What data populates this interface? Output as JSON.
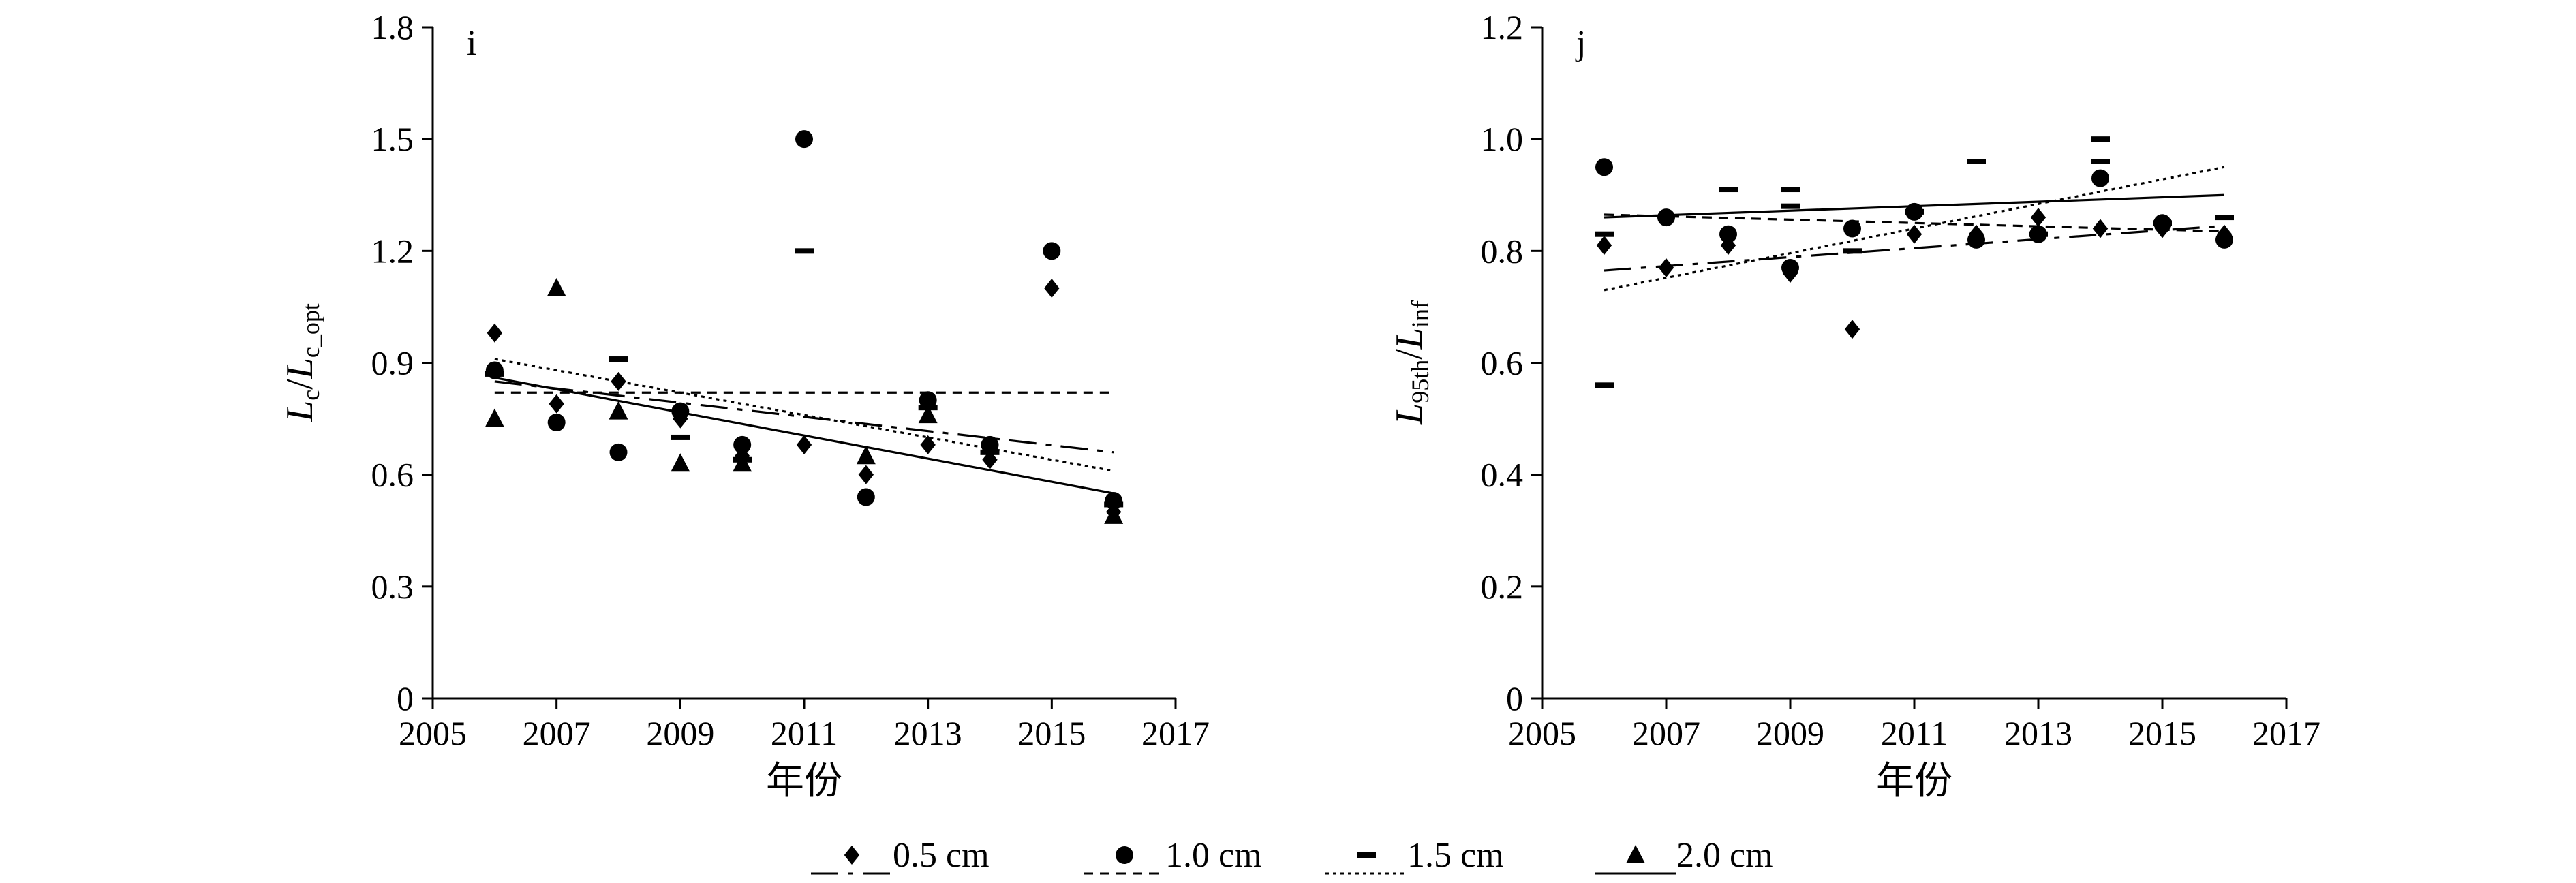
{
  "chart_data": [
    {
      "type": "scatter",
      "panel_label": "i",
      "xlabel": "年份",
      "ylabel": {
        "main": "L",
        "main_sub": "c",
        "slash": "/",
        "den": "L",
        "den_sub": "c_opt"
      },
      "xlim": [
        2005,
        2017
      ],
      "ylim": [
        0,
        1.8
      ],
      "xticks": [
        2005,
        2007,
        2009,
        2011,
        2013,
        2015,
        2017
      ],
      "yticks": [
        0,
        0.3,
        0.6,
        0.9,
        1.2,
        1.5,
        1.8
      ],
      "ytick_labels": [
        "0",
        "0.3",
        "0.6",
        "0.9",
        "1.2",
        "1.5",
        "1.8"
      ],
      "series": [
        {
          "name": "0.5 cm",
          "marker": "diamond",
          "line": "dash-dot",
          "x": [
            2006,
            2007,
            2008,
            2009,
            2010,
            2011,
            2012,
            2013,
            2014,
            2015,
            2016
          ],
          "y": [
            0.98,
            0.79,
            0.85,
            0.75,
            0.65,
            0.68,
            0.6,
            0.68,
            0.64,
            1.1,
            0.5
          ],
          "trend": [
            [
              2006,
              0.85
            ],
            [
              2016,
              0.66
            ]
          ]
        },
        {
          "name": "1.0 cm",
          "marker": "circle",
          "line": "short-dash",
          "x": [
            2006,
            2007,
            2008,
            2009,
            2010,
            2011,
            2012,
            2013,
            2014,
            2015,
            2016
          ],
          "y": [
            0.88,
            0.74,
            0.66,
            0.77,
            0.68,
            1.5,
            0.54,
            0.8,
            0.68,
            1.2,
            0.53
          ],
          "trend": [
            [
              2006,
              0.82
            ],
            [
              2016,
              0.82
            ]
          ]
        },
        {
          "name": "1.5 cm",
          "marker": "dash",
          "line": "dotted",
          "x": [
            2006,
            2008,
            2009,
            2010,
            2011,
            2013,
            2014,
            2016
          ],
          "y": [
            0.87,
            0.91,
            0.7,
            0.64,
            1.2,
            0.78,
            0.66,
            0.52
          ],
          "trend": [
            [
              2006,
              0.91
            ],
            [
              2016,
              0.61
            ]
          ]
        },
        {
          "name": "2.0 cm",
          "marker": "triangle",
          "line": "solid",
          "x": [
            2006,
            2007,
            2008,
            2009,
            2010,
            2012,
            2013,
            2016
          ],
          "y": [
            0.75,
            1.1,
            0.77,
            0.63,
            0.63,
            0.65,
            0.76,
            0.49
          ],
          "trend": [
            [
              2006,
              0.86
            ],
            [
              2016,
              0.55
            ]
          ]
        }
      ]
    },
    {
      "type": "scatter",
      "panel_label": "j",
      "xlabel": "年份",
      "ylabel": {
        "main": "L",
        "main_sub": "95th",
        "slash": "/",
        "den": "L",
        "den_sub": "inf"
      },
      "xlim": [
        2005,
        2017
      ],
      "ylim": [
        0,
        1.2
      ],
      "xticks": [
        2005,
        2007,
        2009,
        2011,
        2013,
        2015,
        2017
      ],
      "yticks": [
        0,
        0.2,
        0.4,
        0.6,
        0.8,
        1.0,
        1.2
      ],
      "ytick_labels": [
        "0",
        "0.2",
        "0.4",
        "0.6",
        "0.8",
        "1.0",
        "1.2"
      ],
      "series": [
        {
          "name": "0.5 cm",
          "marker": "diamond",
          "line": "dash-dot",
          "x": [
            2006,
            2007,
            2008,
            2009,
            2010,
            2011,
            2012,
            2013,
            2014,
            2015,
            2016
          ],
          "y": [
            0.81,
            0.77,
            0.81,
            0.76,
            0.66,
            0.83,
            0.83,
            0.86,
            0.84,
            0.84,
            0.83
          ],
          "trend": [
            [
              2006,
              0.765
            ],
            [
              2016,
              0.845
            ]
          ]
        },
        {
          "name": "1.0 cm",
          "marker": "circle",
          "line": "short-dash",
          "x": [
            2006,
            2007,
            2008,
            2009,
            2010,
            2011,
            2012,
            2013,
            2014,
            2015,
            2016
          ],
          "y": [
            0.95,
            0.86,
            0.83,
            0.77,
            0.84,
            0.87,
            0.82,
            0.83,
            0.93,
            0.85,
            0.82
          ],
          "trend": [
            [
              2006,
              0.865
            ],
            [
              2016,
              0.835
            ]
          ]
        },
        {
          "name": "1.5 cm",
          "marker": "dash",
          "line": "dotted",
          "x": [
            2006,
            2006,
            2008,
            2009,
            2009,
            2010,
            2011,
            2012,
            2013,
            2014,
            2014,
            2015,
            2016
          ],
          "y": [
            0.56,
            0.83,
            0.91,
            0.91,
            0.88,
            0.8,
            0.87,
            0.96,
            0.83,
            1.0,
            0.96,
            0.85,
            0.86
          ],
          "trend": [
            [
              2006,
              0.73
            ],
            [
              2016,
              0.95
            ]
          ]
        },
        {
          "name": "2.0 cm",
          "marker": "triangle",
          "line": "solid",
          "x": [],
          "y": [],
          "trend": [
            [
              2006,
              0.86
            ],
            [
              2016,
              0.9
            ]
          ]
        }
      ]
    }
  ],
  "legend": {
    "placement": "bottom-center",
    "items": [
      {
        "label": "0.5 cm",
        "marker": "diamond",
        "line": "dash-dot"
      },
      {
        "label": "1.0 cm",
        "marker": "circle",
        "line": "short-dash"
      },
      {
        "label": "1.5 cm",
        "marker": "dash",
        "line": "dotted"
      },
      {
        "label": "2.0 cm",
        "marker": "triangle",
        "line": "solid"
      }
    ]
  }
}
